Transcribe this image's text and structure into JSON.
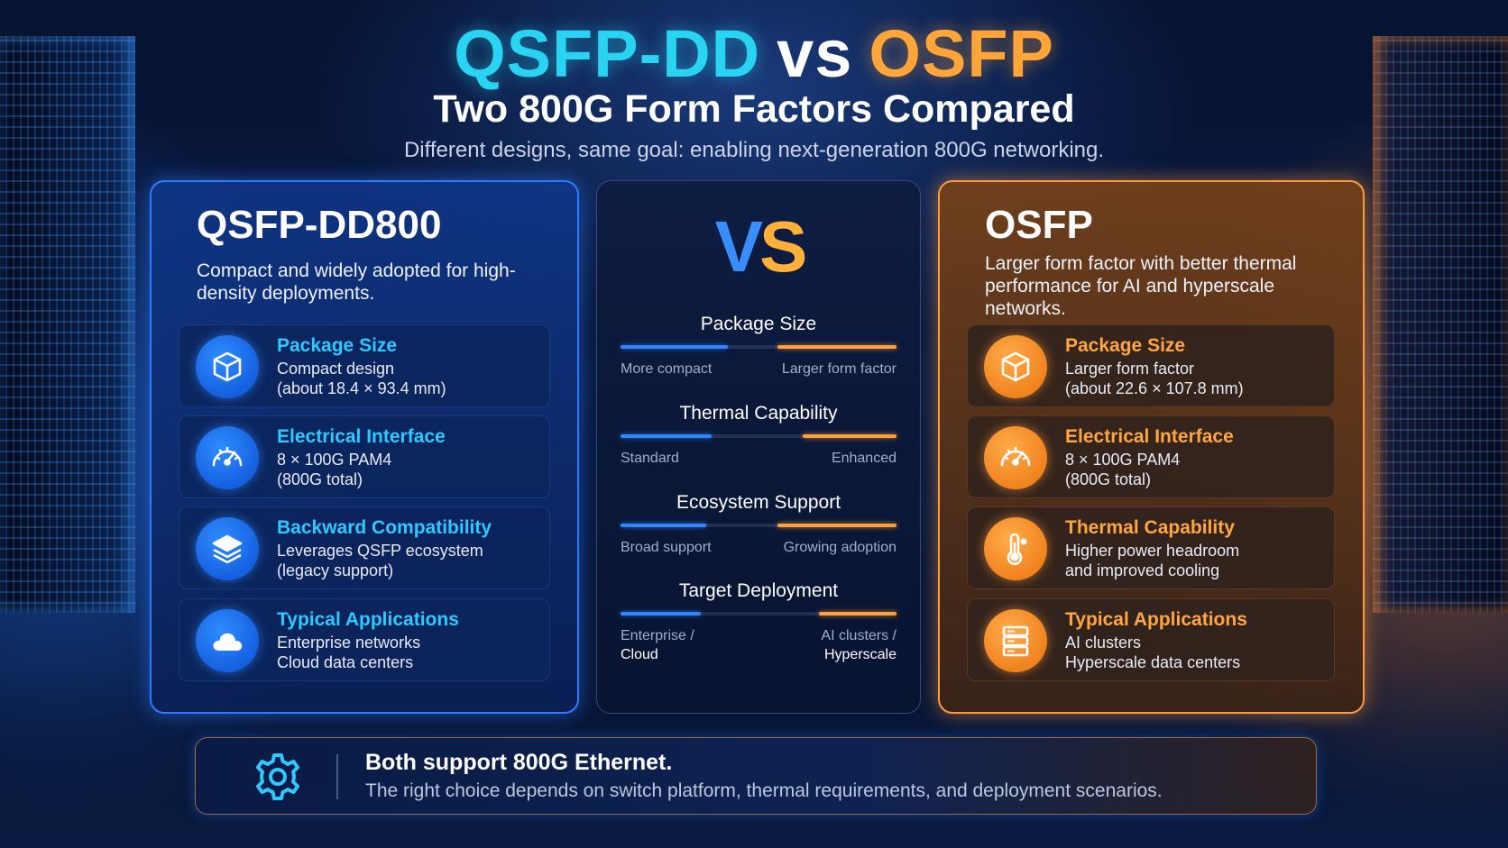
{
  "header": {
    "title_left": "QSFP-DD",
    "title_vs": "vs",
    "title_right": "OSFP",
    "subtitle": "Two 800G Form Factors Compared",
    "tagline": "Different designs, same goal: enabling next-generation 800G networking."
  },
  "left_card": {
    "title": "QSFP-DD800",
    "description": "Compact and widely adopted for high-density deployments.",
    "features": [
      {
        "icon": "cube-icon",
        "title": "Package Size",
        "line1": "Compact design",
        "line2": "(about 18.4 × 93.4 mm)"
      },
      {
        "icon": "gauge-icon",
        "title": "Electrical Interface",
        "line1": "8 × 100G PAM4",
        "line2": "(800G total)"
      },
      {
        "icon": "layers-icon",
        "title": "Backward Compatibility",
        "line1": "Leverages QSFP ecosystem",
        "line2": "(legacy support)"
      },
      {
        "icon": "cloud-icon",
        "title": "Typical Applications",
        "line1": "Enterprise networks",
        "line2": "Cloud data centers"
      }
    ]
  },
  "middle_card": {
    "vs_v": "V",
    "vs_s": "S",
    "comparisons": [
      {
        "title": "Package Size",
        "left_label": "More compact",
        "right_label": "Larger form factor",
        "blue_share": 0.39,
        "orange_share": 0.43
      },
      {
        "title": "Thermal Capability",
        "left_label": "Standard",
        "right_label": "Enhanced",
        "blue_share": 0.33,
        "orange_share": 0.34
      },
      {
        "title": "Ecosystem Support",
        "left_label": "Broad support",
        "right_label": "Growing adoption",
        "blue_share": 0.31,
        "orange_share": 0.43
      },
      {
        "title": "Target Deployment",
        "left_label": "Enterprise /",
        "left_label2": "Cloud",
        "right_label": "AI clusters /",
        "right_label2": "Hyperscale",
        "blue_share": 0.29,
        "orange_share": 0.28
      }
    ]
  },
  "right_card": {
    "title": "OSFP",
    "description": "Larger form factor with better thermal performance for AI and hyperscale networks.",
    "features": [
      {
        "icon": "cube-icon",
        "title": "Package Size",
        "line1": "Larger form factor",
        "line2": "(about 22.6 × 107.8 mm)"
      },
      {
        "icon": "gauge-icon",
        "title": "Electrical Interface",
        "line1": "8 × 100G PAM4",
        "line2": "(800G total)"
      },
      {
        "icon": "thermometer-icon",
        "title": "Thermal Capability",
        "line1": "Higher power headroom",
        "line2": "and improved cooling"
      },
      {
        "icon": "server-icon",
        "title": "Typical Applications",
        "line1": "AI clusters",
        "line2": "Hyperscale data centers"
      }
    ]
  },
  "banner": {
    "icon": "gear-icon",
    "title": "Both support 800G Ethernet.",
    "text": "The right choice depends on switch platform, thermal requirements, and deployment scenarios."
  },
  "colors": {
    "qsfp_accent": "#2fc8ff",
    "osfp_accent": "#ffa640",
    "blue_bar": "#2f86ff",
    "orange_bar": "#ff9f3a"
  }
}
